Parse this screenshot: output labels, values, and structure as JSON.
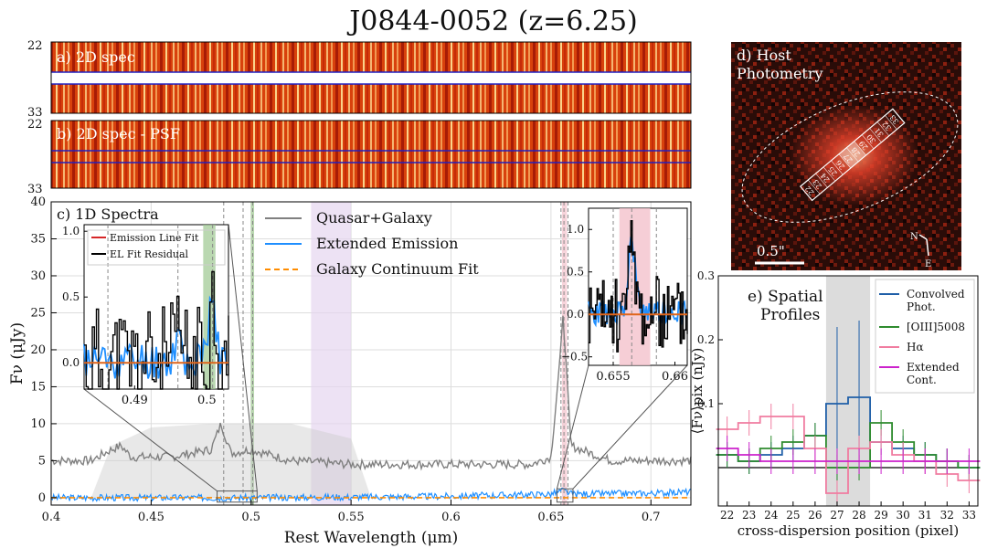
{
  "title": "J0844-0052 (z=6.25)",
  "panels": {
    "a": {
      "label": "a) 2D spec",
      "ytick_top": "22",
      "ytick_bottom": "33"
    },
    "b": {
      "label": "b) 2D spec - PSF",
      "ytick_top": "22",
      "ytick_bottom": "33"
    },
    "d": {
      "label_line1": "d) Host",
      "label_line2": "Photometry",
      "scalebar": "0.5\"",
      "compass_n": "N",
      "compass_e": "E",
      "slit_labels": [
        "22",
        "23",
        "24",
        "25",
        "26",
        "27",
        "28",
        "29",
        "30",
        "31",
        "32",
        "33"
      ]
    },
    "c": {
      "label": "c) 1D Spectra"
    },
    "e": {
      "label_line1": "e) Spatial",
      "label_line2": "Profiles"
    }
  },
  "chart_data": [
    {
      "type": "line",
      "panel": "c",
      "xlabel": "Rest Wavelength (μm)",
      "ylabel": "Fν (μJy)",
      "xlim": [
        0.4,
        0.72
      ],
      "ylim": [
        -1,
        40
      ],
      "xticks": [
        0.4,
        0.45,
        0.5,
        0.55,
        0.6,
        0.65,
        0.7
      ],
      "xticklabels": [
        "0.4",
        "0.45",
        "0.5",
        "0.55",
        "0.6",
        "0.65",
        "0.7"
      ],
      "yticks": [
        0,
        5,
        10,
        15,
        20,
        25,
        30,
        35,
        40
      ],
      "legend": {
        "position": "top-center",
        "entries": [
          {
            "name": "Quasar+Galaxy",
            "color": "#808080",
            "style": "solid"
          },
          {
            "name": "Extended Emission",
            "color": "#1f8fff",
            "style": "solid"
          },
          {
            "name": "Galaxy Continuum Fit",
            "color": "#ff8c00",
            "style": "dashed"
          }
        ]
      },
      "series": [
        {
          "name": "Quasar+Galaxy",
          "x": [
            0.4,
            0.42,
            0.43,
            0.435,
            0.44,
            0.46,
            0.48,
            0.485,
            0.49,
            0.5,
            0.52,
            0.55,
            0.6,
            0.64,
            0.65,
            0.655,
            0.656,
            0.66,
            0.68,
            0.7,
            0.72
          ],
          "values": [
            5,
            5,
            6.5,
            7,
            5.5,
            5.5,
            6.5,
            10,
            6,
            6.5,
            5,
            4.5,
            4.5,
            4.5,
            5.5,
            20,
            25,
            7,
            5,
            5,
            5
          ]
        },
        {
          "name": "Extended Emission",
          "x": [
            0.4,
            0.5,
            0.6,
            0.65,
            0.656,
            0.66,
            0.7,
            0.72
          ],
          "values": [
            0,
            0,
            0.2,
            0.5,
            1,
            0.5,
            0.6,
            0.8
          ]
        },
        {
          "name": "Galaxy Continuum Fit",
          "x": [
            0.4,
            0.72
          ],
          "values": [
            0,
            0
          ]
        }
      ],
      "shaded_regions": [
        {
          "x": [
            0.53,
            0.55
          ],
          "color": "#e6d6f0"
        },
        {
          "x": [
            0.4999,
            0.5015
          ],
          "color": "#9cc890"
        },
        {
          "x": [
            0.6555,
            0.658
          ],
          "color": "#f4c2cc"
        }
      ],
      "vlines": [
        0.4863,
        0.496,
        0.5008,
        0.655,
        0.6565,
        0.6585
      ],
      "insets": [
        {
          "xlim": [
            0.483,
            0.503
          ],
          "ylim": [
            -0.2,
            1.05
          ],
          "xticks": [
            0.49,
            0.5
          ],
          "xticklabels": [
            "0.49",
            "0.5"
          ],
          "yticks": [
            0.0,
            0.5,
            1.0
          ],
          "yticklabels": [
            "0.0",
            "0.5",
            "1.0"
          ],
          "legend": [
            {
              "name": "Emission Line Fit",
              "color": "#d62728"
            },
            {
              "name": "EL Fit Residual",
              "color": "#000000"
            }
          ]
        },
        {
          "xlim": [
            0.653,
            0.661
          ],
          "ylim": [
            -0.6,
            1.25
          ],
          "xticks": [
            0.655,
            0.66
          ],
          "xticklabels": [
            "0.655",
            "0.66"
          ],
          "yticks": [
            -0.5,
            0.0,
            0.5,
            1.0
          ],
          "yticklabels": [
            "−0.5",
            "0.0",
            "0.5",
            "1.0"
          ]
        }
      ]
    },
    {
      "type": "line",
      "panel": "e",
      "xlabel": "cross-dispersion position (pixel)",
      "ylabel": "⟨Fν⟩pix (nJy)",
      "xlim": [
        21.6,
        33.4
      ],
      "ylim": [
        -0.06,
        0.3
      ],
      "yticks": [
        0.1,
        0.2,
        0.3
      ],
      "yticklabels": [
        "0.1",
        "0.2",
        "0.3"
      ],
      "xticks": [
        22,
        23,
        24,
        25,
        26,
        27,
        28,
        29,
        30,
        31,
        32,
        33
      ],
      "shaded_region": [
        26.5,
        28.5
      ],
      "legend": {
        "position": "top-right",
        "entries": [
          {
            "name": "Convolved Phot.",
            "lines": [
              "Convolved",
              "Phot."
            ],
            "color": "#1f5fa8"
          },
          {
            "name": "[OIII]5008",
            "lines": [
              "[OIII]5008"
            ],
            "color": "#2e8b2e"
          },
          {
            "name": "Hα",
            "lines": [
              "Hα"
            ],
            "color": "#f07ca0"
          },
          {
            "name": "Extended Cont.",
            "lines": [
              "Extended",
              "Cont."
            ],
            "color": "#cc22cc"
          }
        ]
      },
      "categories": [
        22,
        23,
        24,
        25,
        26,
        27,
        28,
        29,
        30,
        31,
        32,
        33
      ],
      "series": [
        {
          "name": "Convolved Phot.",
          "values": [
            0.02,
            0.01,
            0.02,
            0.03,
            0.05,
            0.1,
            0.11,
            0.04,
            0.03,
            0.02,
            0.01,
            0.0
          ]
        },
        {
          "name": "[OIII]5008",
          "values": [
            0.02,
            0.01,
            0.03,
            0.04,
            0.05,
            0.0,
            0.0,
            0.07,
            0.04,
            0.02,
            0.01,
            0.0
          ]
        },
        {
          "name": "Hα",
          "values": [
            0.06,
            0.07,
            0.08,
            0.08,
            0.03,
            -0.04,
            0.03,
            0.04,
            0.02,
            0.01,
            -0.01,
            -0.02
          ]
        },
        {
          "name": "Extended Cont.",
          "values": [
            0.03,
            0.02,
            0.01,
            0.01,
            0.01,
            0.01,
            0.01,
            0.01,
            0.01,
            0.01,
            0.01,
            0.01
          ]
        }
      ]
    }
  ]
}
